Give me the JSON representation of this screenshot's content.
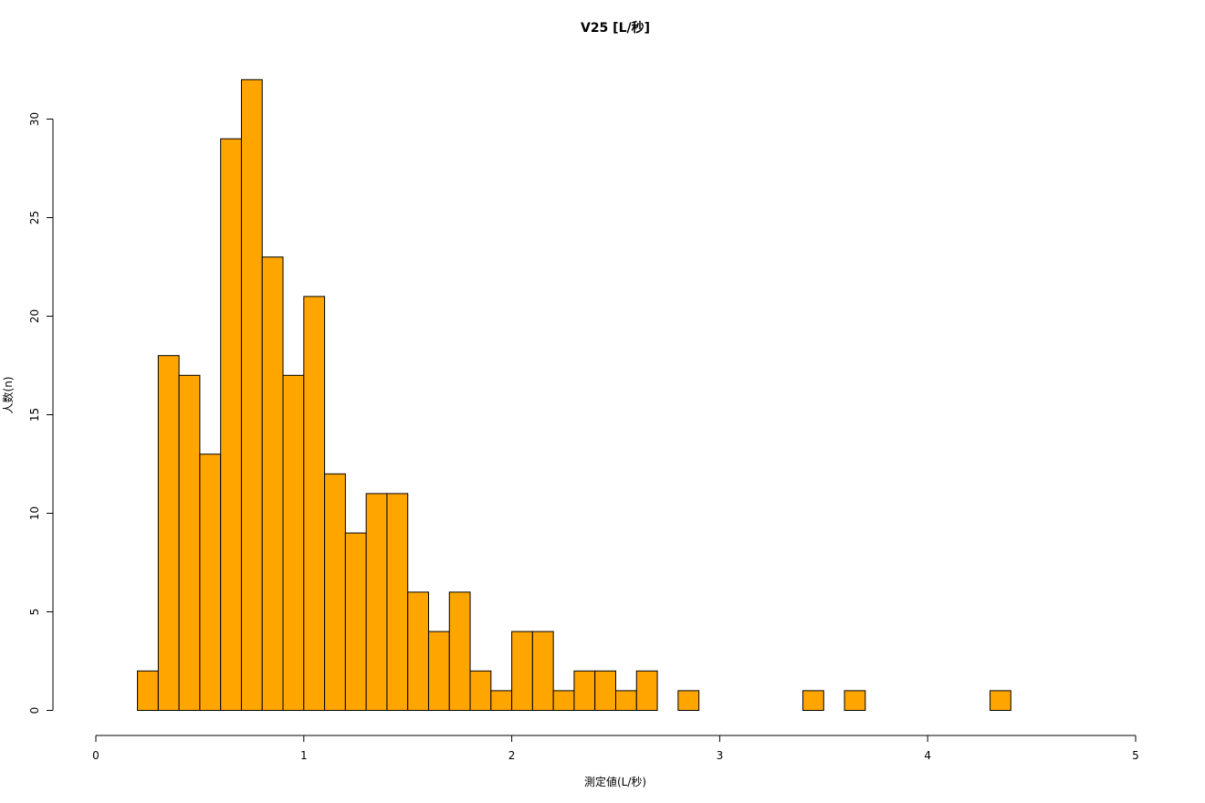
{
  "chart_data": {
    "type": "bar",
    "title": "V25 [L/秒]",
    "xlabel": "測定値(L/秒)",
    "ylabel": "人数(n)",
    "bar_color": "#FFA500",
    "bin_width": 0.1,
    "bin_start": 0.2,
    "values": [
      2,
      18,
      17,
      13,
      29,
      32,
      23,
      17,
      21,
      12,
      9,
      11,
      11,
      6,
      4,
      6,
      2,
      1,
      4,
      4,
      1,
      2,
      2,
      1,
      2,
      0,
      1,
      0,
      0,
      0,
      0,
      0,
      1,
      0,
      1,
      0,
      0,
      0,
      0,
      0,
      0,
      1
    ],
    "xlim": [
      0,
      5
    ],
    "ylim": [
      0,
      30
    ],
    "x_ticks": [
      "0",
      "1",
      "2",
      "3",
      "4",
      "5"
    ],
    "y_ticks": [
      "0",
      "5",
      "10",
      "15",
      "20",
      "25",
      "30"
    ],
    "grid": false,
    "legend": "none"
  }
}
